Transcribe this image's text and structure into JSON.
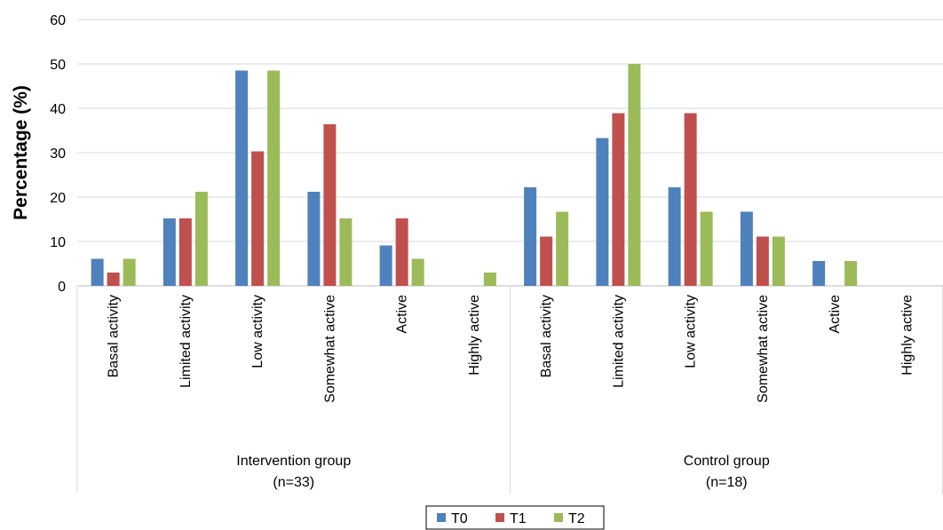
{
  "chart_data": {
    "type": "bar",
    "ylabel": "Percentage (%)",
    "ylim": [
      0,
      60
    ],
    "yticks": [
      "0",
      "10",
      "20",
      "30",
      "40",
      "50",
      "60"
    ],
    "grid": true,
    "legend_position": "bottom",
    "groups": [
      {
        "name": "Intervention group",
        "sub": "(n=33)",
        "categories": [
          "Basal activity",
          "Limited activity",
          "Low activity",
          "Somewhat active",
          "Active",
          "Highly active"
        ],
        "series": [
          {
            "name": "T0",
            "values": [
              6.1,
              15.2,
              48.5,
              21.2,
              9.1,
              0
            ]
          },
          {
            "name": "T1",
            "values": [
              3.0,
              15.2,
              30.3,
              36.4,
              15.2,
              0
            ]
          },
          {
            "name": "T2",
            "values": [
              6.1,
              21.2,
              48.5,
              15.2,
              6.1,
              3.0
            ]
          }
        ]
      },
      {
        "name": "Control group",
        "sub": "(n=18)",
        "categories": [
          "Basal activity",
          "Limited activity",
          "Low activity",
          "Somewhat active",
          "Active",
          "Highly active"
        ],
        "series": [
          {
            "name": "T0",
            "values": [
              22.2,
              33.3,
              22.2,
              16.7,
              5.6,
              0
            ]
          },
          {
            "name": "T1",
            "values": [
              11.1,
              38.9,
              38.9,
              11.1,
              0,
              0
            ]
          },
          {
            "name": "T2",
            "values": [
              16.7,
              50.0,
              16.7,
              11.1,
              5.6,
              0
            ]
          }
        ]
      }
    ],
    "colors": {
      "T0": "#4f81bd",
      "T1": "#c0504d",
      "T2": "#9bbb59"
    }
  }
}
